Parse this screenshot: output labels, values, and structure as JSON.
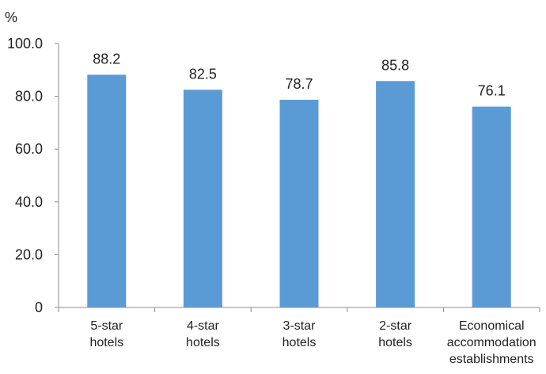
{
  "chart_data": {
    "type": "bar",
    "unit_label": "%",
    "categories": [
      [
        "5-star",
        "hotels"
      ],
      [
        "4-star",
        "hotels"
      ],
      [
        "3-star",
        "hotels"
      ],
      [
        "2-star",
        "hotels"
      ],
      [
        "Economical",
        "accommodation",
        "establishments"
      ]
    ],
    "values": [
      88.2,
      82.5,
      78.7,
      85.8,
      76.1
    ],
    "value_labels": [
      "88.2",
      "82.5",
      "78.7",
      "85.8",
      "76.1"
    ],
    "y_ticks": [
      "0",
      "20.0",
      "40.0",
      "60.0",
      "80.0",
      "100.0"
    ],
    "ylim": [
      0,
      100
    ],
    "bar_color": "#5b9bd5",
    "grid": false,
    "legend": "none"
  }
}
